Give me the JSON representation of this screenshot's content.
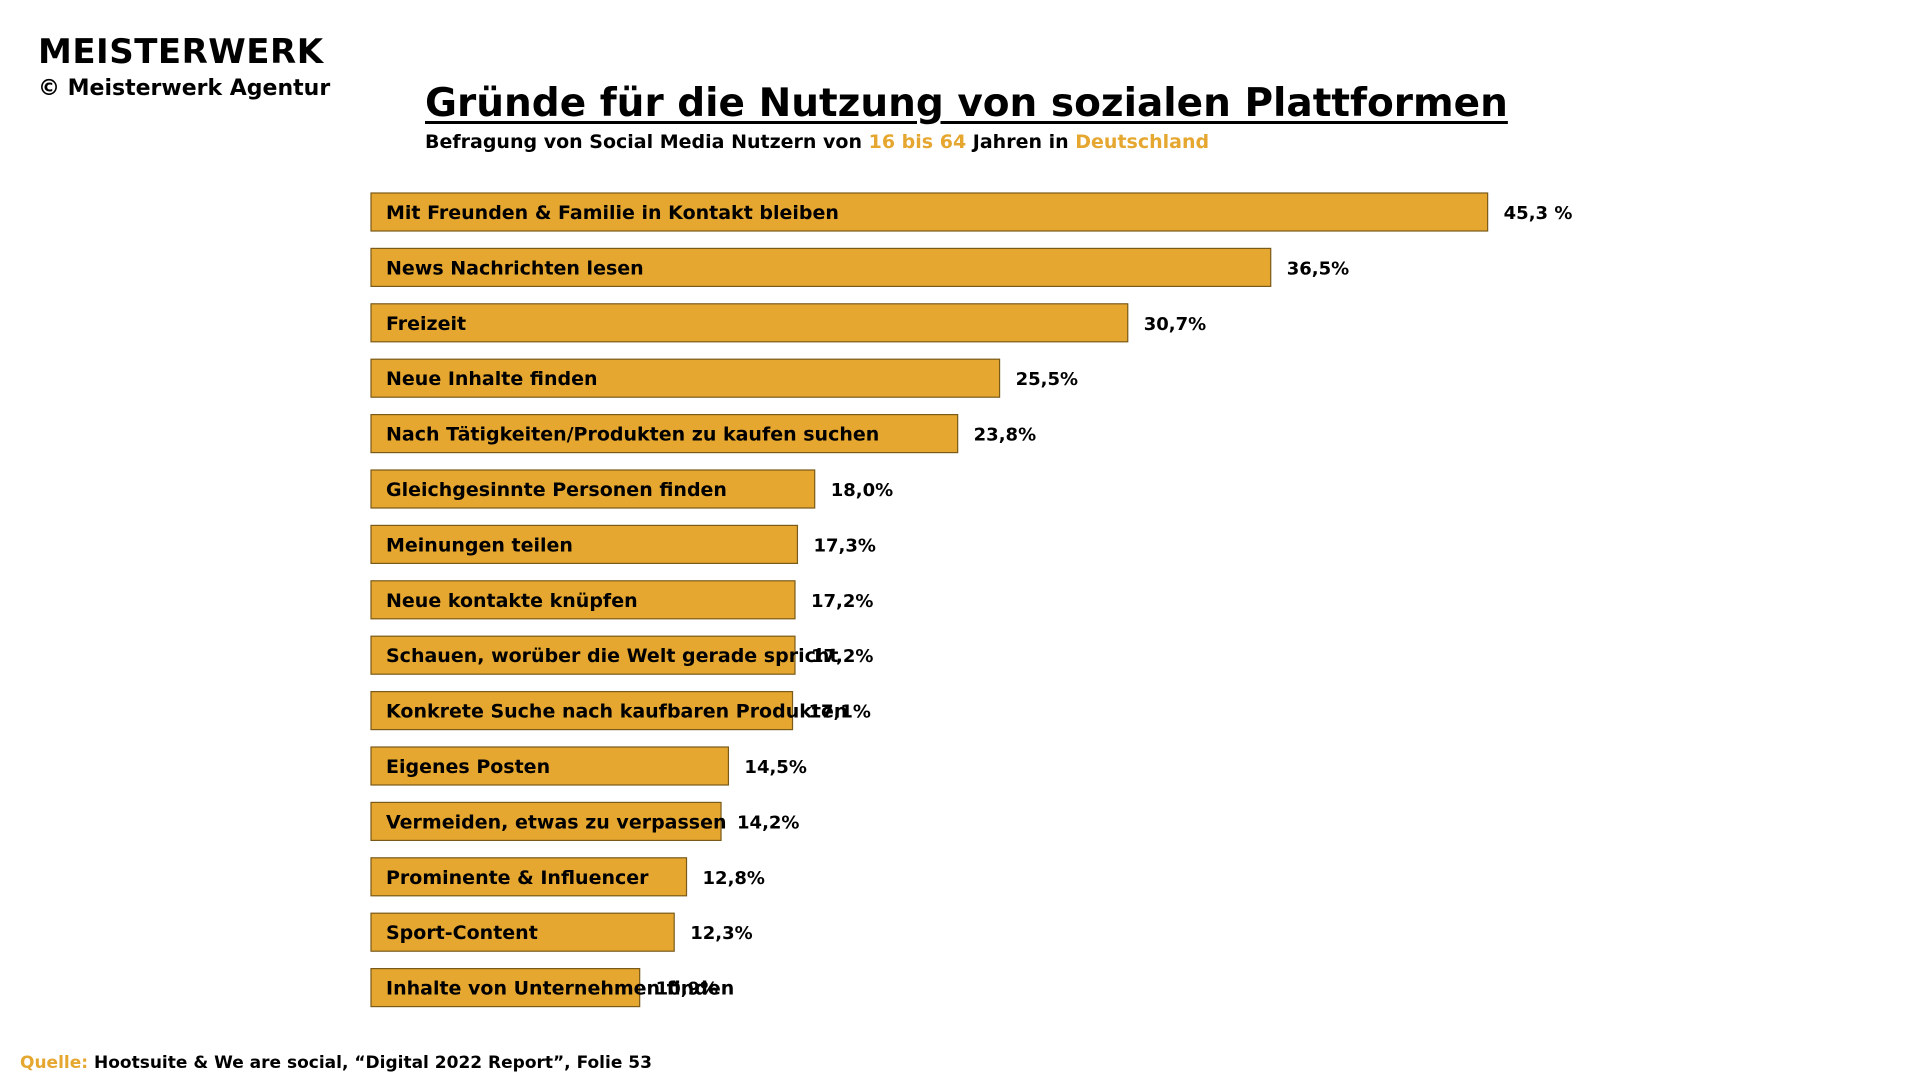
{
  "brand": {
    "name": "MEISTERWERK",
    "copyright": "© Meisterwerk Agentur"
  },
  "header": {
    "title": "Gründe für die Nutzung von sozialen Plattformen",
    "subtitle_part1": "Befragung von Social Media Nutzern von ",
    "subtitle_highlight1": "16 bis 64",
    "subtitle_part2": " Jahren in ",
    "subtitle_highlight2": "Deutschland"
  },
  "colors": {
    "bar_fill": "#e5a730",
    "bar_stroke": "#7a5a18",
    "accent": "#e5a730",
    "text": "#000000"
  },
  "chart_data": {
    "type": "bar",
    "orientation": "horizontal",
    "categories": [
      "Mit Freunden & Familie in Kontakt bleiben",
      "News Nachrichten lesen",
      "Freizeit",
      "Neue Inhalte finden",
      "Nach Tätigkeiten/Produkten zu kaufen suchen",
      "Gleichgesinnte Personen finden",
      "Meinungen teilen",
      "Neue kontakte knüpfen",
      "Schauen, worüber die Welt gerade spricht",
      "Konkrete Suche nach kaufbaren Produkten",
      "Eigenes Posten",
      "Vermeiden, etwas zu verpassen",
      "Prominente & Influencer",
      "Sport-Content",
      "Inhalte von Unternehmen finden"
    ],
    "values": [
      45.3,
      36.5,
      30.7,
      25.5,
      23.8,
      18.0,
      17.3,
      17.2,
      17.2,
      17.1,
      14.5,
      14.2,
      12.8,
      12.3,
      10.9
    ],
    "value_labels": [
      "45,3 %",
      "36,5%",
      "30,7%",
      "25,5%",
      "23,8%",
      "18,0%",
      "17,3%",
      "17,2%",
      "17,2%",
      "17,1%",
      "14,5%",
      "14,2%",
      "12,8%",
      "12,3%",
      "10,9%"
    ],
    "grid": false,
    "legend": "none"
  },
  "source": {
    "label": "Quelle:",
    "text": " Hootsuite & We are social, “Digital 2022 Report”, Folie 53"
  }
}
